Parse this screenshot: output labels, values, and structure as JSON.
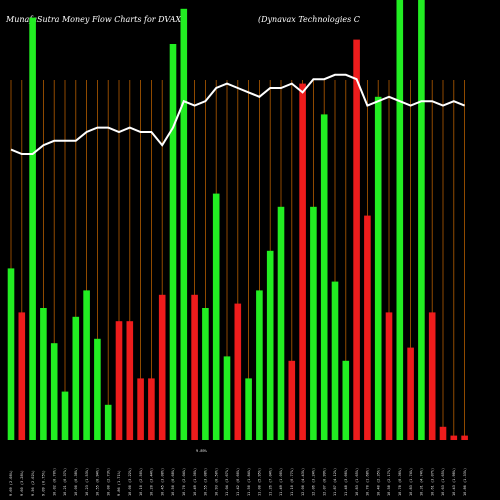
{
  "chart_data": {
    "type": "bar",
    "title_left": "MunafaSutra  Money Flow  Charts for DVAX",
    "title_right": "(Dynavax Technologies C",
    "xlabel": "",
    "ylabel": "",
    "ylim": [
      0,
      100
    ],
    "grid": true,
    "colors": {
      "background": "#000000",
      "up": "#22ee22",
      "down": "#ee1c1c",
      "grid": "#b35c00",
      "line": "#ffffff"
    },
    "categories": [
      "9.69 (2.08%)",
      "9.60 (3.28%)",
      "9.56 (2.02%)",
      "9.09 (0.75%)",
      "10.02 (0.70%)",
      "10.21 (0.37%)",
      "10.00 (0.38%)",
      "10.23 (1.53%)",
      "10.55 (0.94%)",
      "10.00 (2.73%)",
      "9.86 (1.71%)",
      "10.00 (3.22%)",
      "10.10 (2.50%)",
      "10.20 (3.44%)",
      "10.45 (3.08%)",
      "10.50 (0.68%)",
      "10.70 (2.04%)",
      "10.49 (1.30%)",
      "10.55 (3.08%)",
      "10.93 (0.50%)",
      "11.04 (3.67%)",
      "11.42 (0.60%)",
      "11.50 (1.84%)",
      "11.00 (5.95%)",
      "11.26 (7.04%)",
      "11.49 (1.00%)",
      "11.10 (0.77%)",
      "12.00 (4.43%)",
      "12.06 (3.24%)",
      "12.07 (0.99%)",
      "11.87 (4.12%)",
      "11.48 (3.66%)",
      "10.83 (1.65%)",
      "10.70 (1.68%)",
      "10.40 (2.35%)",
      "10.58 (2.17%)",
      "10.78 (0.36%)",
      "10.83 (1.74%)",
      "10.31 (4.74%)",
      "10.61 (3.07%)",
      "10.63 (1.65%)",
      "10.43 (1.98%)",
      "10.86 (1.33%)"
    ],
    "extra_label": "9.89%",
    "series": [
      {
        "values": [
          39,
          29,
          96,
          30,
          22,
          11,
          28,
          34,
          23,
          8,
          27,
          27,
          14,
          14,
          33,
          90,
          98,
          33,
          30,
          56,
          19,
          31,
          14,
          34,
          43,
          53,
          18,
          81,
          53,
          74,
          36,
          18,
          91,
          51,
          78,
          29,
          100,
          21,
          100,
          29,
          3,
          1,
          1
        ],
        "directions": [
          "up",
          "down",
          "up",
          "up",
          "up",
          "up",
          "up",
          "up",
          "up",
          "up",
          "down",
          "down",
          "down",
          "down",
          "down",
          "up",
          "up",
          "down",
          "up",
          "up",
          "up",
          "down",
          "up",
          "up",
          "up",
          "up",
          "down",
          "down",
          "up",
          "up",
          "up",
          "up",
          "down",
          "down",
          "up",
          "down",
          "up",
          "down",
          "up",
          "down",
          "down",
          "down",
          "down"
        ]
      }
    ],
    "line_values": [
      66,
      65,
      65,
      67,
      68,
      68,
      68,
      70,
      71,
      71,
      70,
      71,
      70,
      70,
      67,
      71,
      77,
      76,
      77,
      80,
      81,
      80,
      79,
      78,
      80,
      80,
      81,
      79,
      82,
      82,
      83,
      83,
      82,
      76,
      77,
      78,
      77,
      76,
      77,
      77,
      76,
      77,
      76
    ]
  }
}
